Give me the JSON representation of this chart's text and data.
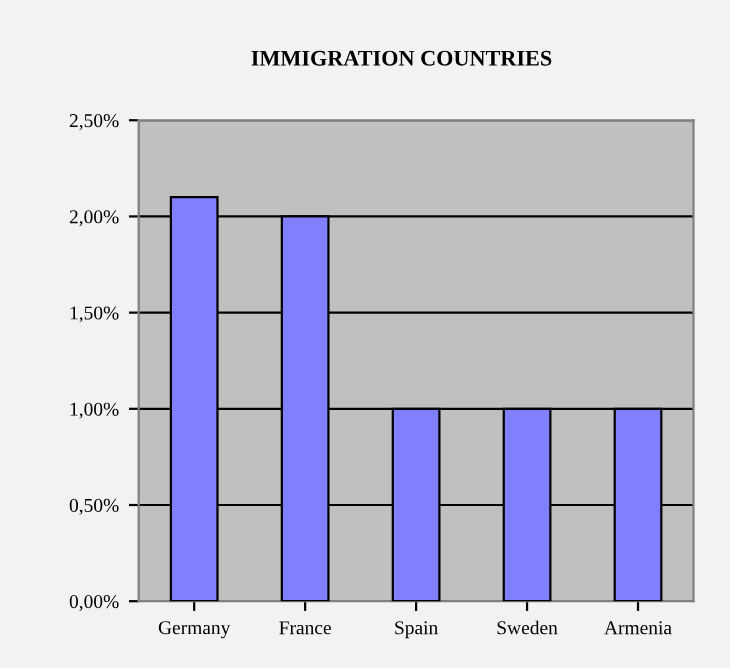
{
  "chart_data": {
    "type": "bar",
    "title": "IMMIGRATION COUNTRIES",
    "categories": [
      "Germany",
      "France",
      "Spain",
      "Sweden",
      "Armenia"
    ],
    "values": [
      2.1,
      2.0,
      1.0,
      1.0,
      1.0
    ],
    "color": "#8080ff",
    "ylim": [
      0,
      2.5
    ],
    "yticks": [
      {
        "value": 0,
        "label": "0,00%"
      },
      {
        "value": 0.5,
        "label": "0,50%"
      },
      {
        "value": 1.0,
        "label": "1,00%"
      },
      {
        "value": 1.5,
        "label": "1,50%"
      },
      {
        "value": 2.0,
        "label": "2,00%"
      },
      {
        "value": 2.5,
        "label": "2,50%"
      }
    ],
    "grid": "y"
  }
}
